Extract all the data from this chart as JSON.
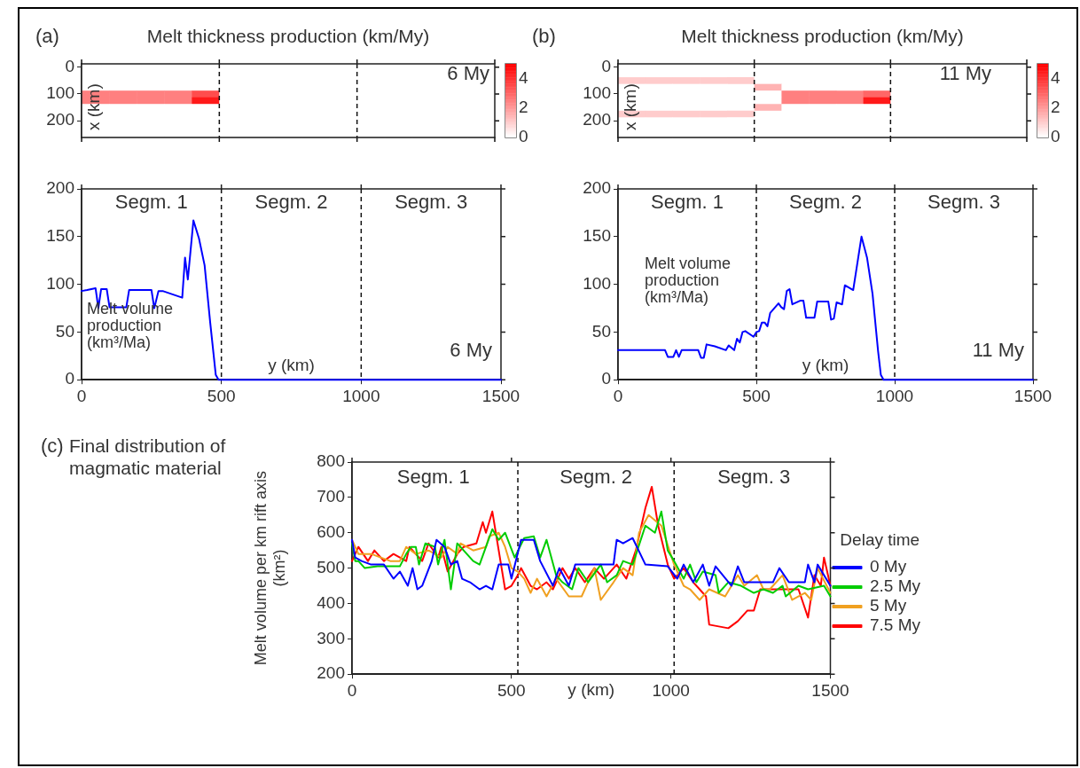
{
  "chart_data": [
    {
      "type": "heatmap",
      "title": "Melt thickness production (km/My)",
      "ylabel": "x (km)",
      "annotations": [
        "(a)",
        "6 My"
      ],
      "categories": [
        null,
        null,
        null,
        null,
        null,
        null,
        null,
        null,
        null,
        null,
        null,
        null,
        null,
        null,
        null
      ],
      "y_categories": [
        "0",
        null,
        null,
        null,
        "100",
        null,
        null,
        null,
        "200",
        null,
        null
      ],
      "cells": [
        [
          0,
          0,
          0,
          0,
          0,
          0,
          0,
          0,
          0,
          0,
          0,
          0,
          0,
          0,
          0
        ],
        [
          0,
          0,
          0,
          0,
          0,
          0,
          0,
          0,
          0,
          0,
          0,
          0,
          0,
          0,
          0
        ],
        [
          0,
          0,
          0,
          0,
          0,
          0,
          0,
          0,
          0,
          0,
          0,
          0,
          0,
          0,
          0
        ],
        [
          0,
          0,
          0,
          0,
          0,
          0,
          0,
          0,
          0,
          0,
          0,
          0,
          0,
          0,
          0
        ],
        [
          2.5,
          2.5,
          2.5,
          2.5,
          3.5,
          0,
          0,
          0,
          0,
          0,
          0,
          0,
          0,
          0,
          0
        ],
        [
          2.5,
          2.5,
          2.5,
          2.5,
          4.5,
          0,
          0,
          0,
          0,
          0,
          0,
          0,
          0,
          0,
          0
        ],
        [
          0,
          0,
          0,
          0,
          0,
          0,
          0,
          0,
          0,
          0,
          0,
          0,
          0,
          0,
          0
        ],
        [
          0,
          0,
          0,
          0,
          0,
          0,
          0,
          0,
          0,
          0,
          0,
          0,
          0,
          0,
          0
        ],
        [
          0,
          0,
          0,
          0,
          0,
          0,
          0,
          0,
          0,
          0,
          0,
          0,
          0,
          0,
          0
        ],
        [
          0,
          0,
          0,
          0,
          0,
          0,
          0,
          0,
          0,
          0,
          0,
          0,
          0,
          0,
          0
        ],
        [
          0,
          0,
          0,
          0,
          0,
          0,
          0,
          0,
          0,
          0,
          0,
          0,
          0,
          0,
          0
        ]
      ],
      "clim": [
        0,
        5
      ],
      "cticks": [
        0,
        2,
        4
      ]
    },
    {
      "type": "line",
      "xlabel": "y (km)",
      "ylabel": "Melt volume production (km³/Ma)",
      "color": "#0000ff",
      "x": [
        0,
        20,
        50,
        60,
        70,
        90,
        100,
        160,
        170,
        250,
        260,
        275,
        290,
        360,
        370,
        380,
        400,
        420,
        440,
        460,
        480,
        490,
        1500
      ],
      "values": [
        93,
        94,
        96,
        75,
        95,
        95,
        76,
        76,
        94,
        94,
        75,
        93,
        93,
        86,
        128,
        105,
        167,
        148,
        120,
        60,
        5,
        0,
        0
      ],
      "xlim": [
        0,
        1500
      ],
      "xticks": [
        0,
        500,
        1000,
        1500
      ],
      "ylim": [
        0,
        200
      ],
      "yticks": [
        0,
        50,
        100,
        150,
        200
      ],
      "annotations": [
        "Segm. 1",
        "Segm. 2",
        "Segm. 3",
        "6 My"
      ],
      "ref_lines": [
        {
          "axis": "x",
          "value": 500,
          "line_style": "dashed"
        },
        {
          "axis": "x",
          "value": 1000,
          "line_style": "dashed"
        }
      ]
    },
    {
      "type": "heatmap",
      "title": "Melt thickness production (km/My)",
      "ylabel": "x (km)",
      "annotations": [
        "(b)",
        "11 My"
      ],
      "categories": [
        null,
        null,
        null,
        null,
        null,
        null,
        null,
        null,
        null,
        null,
        null,
        null,
        null,
        null,
        null
      ],
      "y_categories": [
        "0",
        null,
        null,
        null,
        "100",
        null,
        null,
        null,
        "200",
        null,
        null
      ],
      "cells": [
        [
          0,
          0,
          0,
          0,
          0,
          0,
          0,
          0,
          0,
          0,
          0,
          0,
          0,
          0,
          0
        ],
        [
          0,
          0,
          0,
          0,
          0,
          0,
          0,
          0,
          0,
          0,
          0,
          0,
          0,
          0,
          0
        ],
        [
          1,
          1,
          1,
          1,
          1,
          0,
          0,
          0,
          0,
          0,
          0,
          0,
          0,
          0,
          0
        ],
        [
          0,
          0,
          0,
          0,
          0,
          1.5,
          0,
          0,
          0,
          0,
          0,
          0,
          0,
          0,
          0
        ],
        [
          0,
          0,
          0,
          0,
          0,
          0,
          2.5,
          2.5,
          2.5,
          3,
          0,
          0,
          0,
          0,
          0
        ],
        [
          0,
          0,
          0,
          0,
          0,
          0,
          2.5,
          2.5,
          2.5,
          4.5,
          0,
          0,
          0,
          0,
          0
        ],
        [
          0,
          0,
          0,
          0,
          0,
          1.5,
          0,
          0,
          0,
          0,
          0,
          0,
          0,
          0,
          0
        ],
        [
          1,
          1,
          1,
          1,
          1,
          0,
          0,
          0,
          0,
          0,
          0,
          0,
          0,
          0,
          0
        ],
        [
          0,
          0,
          0,
          0,
          0,
          0,
          0,
          0,
          0,
          0,
          0,
          0,
          0,
          0,
          0
        ],
        [
          0,
          0,
          0,
          0,
          0,
          0,
          0,
          0,
          0,
          0,
          0,
          0,
          0,
          0,
          0
        ],
        [
          0,
          0,
          0,
          0,
          0,
          0,
          0,
          0,
          0,
          0,
          0,
          0,
          0,
          0,
          0
        ]
      ],
      "clim": [
        0,
        5
      ],
      "cticks": [
        0,
        2,
        4
      ]
    },
    {
      "type": "line",
      "xlabel": "y (km)",
      "ylabel": "Melt volume production (km³/Ma)",
      "color": "#0000ff",
      "x": [
        0,
        170,
        180,
        200,
        210,
        220,
        230,
        290,
        300,
        310,
        320,
        350,
        390,
        400,
        420,
        430,
        440,
        450,
        460,
        490,
        500,
        510,
        520,
        530,
        540,
        550,
        580,
        590,
        600,
        610,
        620,
        630,
        660,
        670,
        680,
        710,
        720,
        760,
        770,
        780,
        790,
        810,
        820,
        850,
        880,
        900,
        920,
        940,
        950,
        960,
        1500
      ],
      "values": [
        31,
        31,
        24,
        24,
        31,
        24,
        31,
        31,
        23,
        23,
        37,
        35,
        31,
        36,
        31,
        43,
        39,
        50,
        51,
        45,
        50,
        51,
        60,
        60,
        56,
        70,
        80,
        76,
        74,
        93,
        95,
        79,
        83,
        83,
        65,
        65,
        82,
        82,
        63,
        64,
        81,
        79,
        99,
        94,
        150,
        128,
        90,
        30,
        5,
        0,
        0
      ],
      "xlim": [
        0,
        1500
      ],
      "xticks": [
        0,
        500,
        1000,
        1500
      ],
      "ylim": [
        0,
        200
      ],
      "yticks": [
        0,
        50,
        100,
        150,
        200
      ],
      "annotations": [
        "Segm. 1",
        "Segm. 2",
        "Segm. 3",
        "11 My"
      ],
      "ref_lines": [
        {
          "axis": "x",
          "value": 500,
          "line_style": "dashed"
        },
        {
          "axis": "x",
          "value": 1000,
          "line_style": "dashed"
        }
      ]
    },
    {
      "type": "line",
      "title": "Final distribution of magmatic material",
      "xlabel": "y (km)",
      "ylabel": "Melt volume per km rift axis (km²)",
      "legend_title": "Delay time",
      "legend": "right",
      "xlim": [
        0,
        1500
      ],
      "xticks": [
        0,
        500,
        1000,
        1500
      ],
      "ylim": [
        200,
        800
      ],
      "yticks": [
        200,
        300,
        400,
        500,
        600,
        700,
        800
      ],
      "annotations": [
        "(c)",
        "Segm. 1",
        "Segm. 2",
        "Segm. 3"
      ],
      "ref_lines": [
        {
          "axis": "x",
          "value": 520,
          "line_style": "dashed"
        },
        {
          "axis": "x",
          "value": 1010,
          "line_style": "dashed"
        }
      ],
      "series": [
        {
          "name": "0 My",
          "color": "#0000ff",
          "x": [
            0,
            10,
            30,
            60,
            100,
            130,
            150,
            175,
            190,
            205,
            220,
            250,
            265,
            290,
            310,
            330,
            345,
            370,
            400,
            420,
            440,
            460,
            490,
            500,
            530,
            570,
            590,
            630,
            650,
            680,
            700,
            820,
            830,
            850,
            880,
            920,
            990,
            1020,
            1040,
            1070,
            1100,
            1120,
            1140,
            1190,
            1210,
            1230,
            1320,
            1340,
            1370,
            1420,
            1430,
            1450,
            1460,
            1500
          ],
          "values": [
            580,
            530,
            520,
            510,
            510,
            470,
            490,
            450,
            500,
            440,
            450,
            520,
            580,
            560,
            510,
            520,
            470,
            460,
            440,
            450,
            440,
            510,
            510,
            470,
            580,
            580,
            520,
            450,
            500,
            450,
            510,
            510,
            580,
            570,
            585,
            510,
            505,
            470,
            510,
            460,
            510,
            450,
            505,
            450,
            505,
            460,
            460,
            500,
            460,
            460,
            510,
            460,
            510,
            450
          ]
        },
        {
          "name": "2.5 My",
          "color": "#00cc00",
          "x": [
            0,
            10,
            20,
            40,
            80,
            150,
            170,
            185,
            200,
            210,
            230,
            260,
            270,
            290,
            310,
            330,
            360,
            380,
            400,
            420,
            440,
            460,
            480,
            510,
            540,
            570,
            590,
            610,
            640,
            660,
            690,
            710,
            740,
            780,
            800,
            830,
            850,
            880,
            920,
            950,
            970,
            990,
            1010,
            1040,
            1060,
            1080,
            1100,
            1140,
            1150,
            1180,
            1220,
            1260,
            1290,
            1320,
            1350,
            1360,
            1400,
            1430,
            1480,
            1500
          ],
          "values": [
            570,
            520,
            520,
            500,
            505,
            505,
            540,
            560,
            560,
            510,
            570,
            560,
            510,
            580,
            440,
            570,
            540,
            520,
            510,
            560,
            610,
            580,
            600,
            530,
            585,
            590,
            530,
            580,
            480,
            460,
            440,
            500,
            460,
            510,
            460,
            480,
            520,
            510,
            620,
            600,
            660,
            550,
            520,
            470,
            510,
            460,
            490,
            480,
            430,
            460,
            450,
            430,
            440,
            430,
            450,
            420,
            450,
            440,
            450,
            420
          ]
        },
        {
          "name": "5 My",
          "color": "#f0a020",
          "x": [
            0,
            20,
            60,
            120,
            150,
            170,
            200,
            240,
            280,
            300,
            330,
            340,
            380,
            420,
            430,
            460,
            480,
            500,
            520,
            540,
            560,
            580,
            610,
            640,
            680,
            720,
            760,
            780,
            820,
            850,
            880,
            900,
            930,
            970,
            1010,
            1040,
            1060,
            1090,
            1120,
            1170,
            1210,
            1230,
            1270,
            1290,
            1310,
            1350,
            1380,
            1420,
            1440,
            1460,
            1500
          ],
          "values": [
            580,
            540,
            540,
            520,
            520,
            560,
            540,
            550,
            530,
            560,
            540,
            570,
            550,
            560,
            590,
            600,
            560,
            500,
            490,
            470,
            430,
            470,
            420,
            470,
            420,
            420,
            500,
            410,
            460,
            500,
            480,
            600,
            650,
            620,
            510,
            450,
            440,
            410,
            440,
            420,
            480,
            450,
            480,
            440,
            440,
            480,
            410,
            430,
            410,
            500,
            430
          ]
        },
        {
          "name": "7.5 My",
          "color": "#ff0000",
          "x": [
            0,
            20,
            50,
            70,
            100,
            130,
            170,
            180,
            220,
            240,
            270,
            280,
            300,
            330,
            350,
            390,
            410,
            420,
            440,
            460,
            480,
            500,
            520,
            530,
            560,
            580,
            610,
            630,
            660,
            680,
            700,
            730,
            760,
            790,
            830,
            860,
            890,
            920,
            940,
            960,
            990,
            1010,
            1040,
            1070,
            1090,
            1110,
            1120,
            1180,
            1210,
            1240,
            1260,
            1280,
            1340,
            1400,
            1430,
            1450,
            1470,
            1480,
            1500
          ],
          "values": [
            520,
            560,
            520,
            550,
            520,
            540,
            520,
            560,
            520,
            570,
            530,
            560,
            490,
            540,
            560,
            570,
            630,
            600,
            660,
            550,
            440,
            450,
            480,
            500,
            450,
            440,
            460,
            440,
            500,
            470,
            500,
            460,
            500,
            470,
            510,
            470,
            550,
            670,
            730,
            620,
            510,
            470,
            500,
            460,
            440,
            420,
            340,
            330,
            350,
            380,
            380,
            440,
            440,
            440,
            360,
            480,
            450,
            530,
            450
          ]
        }
      ]
    }
  ]
}
